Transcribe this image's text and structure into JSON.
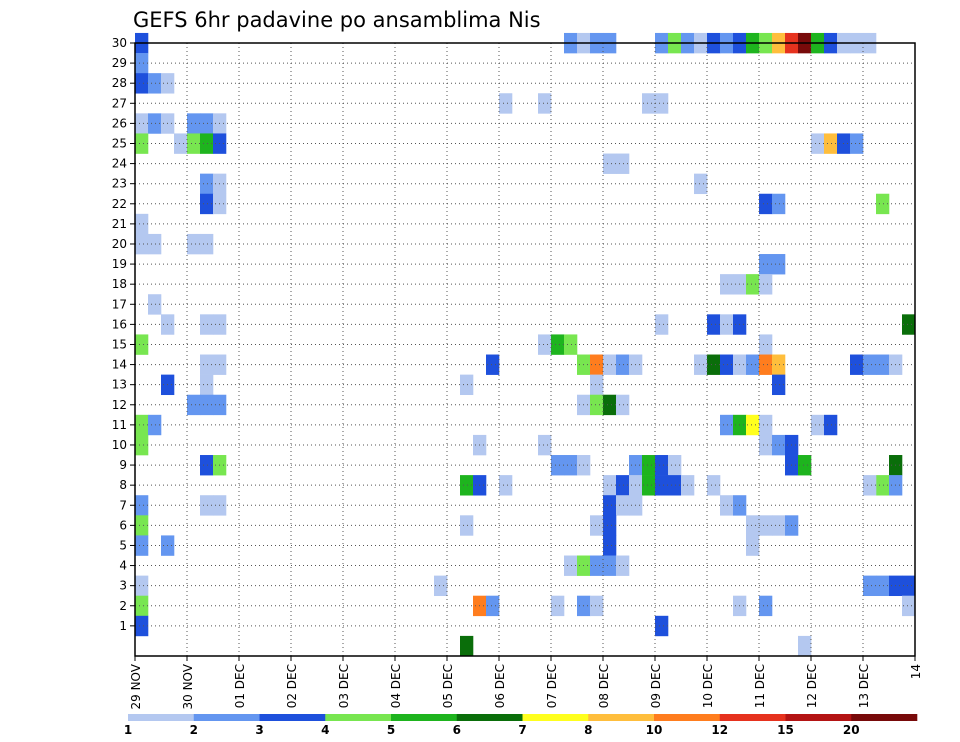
{
  "chart_data": {
    "type": "heatmap",
    "title": "GEFS 6hr padavine po ansamblima Nis",
    "xlabel": "",
    "ylabel": "",
    "x_ticks": [
      "29 NOV",
      "30 NOV",
      "01 DEC",
      "02 DEC",
      "03 DEC",
      "04 DEC",
      "05 DEC",
      "06 DEC",
      "07 DEC",
      "08 DEC",
      "09 DEC",
      "10 DEC",
      "11 DEC",
      "12 DEC",
      "13 DEC",
      "14"
    ],
    "x_steps_per_day": 4,
    "x_range_steps": [
      0,
      60
    ],
    "y_ticks": [
      "1",
      "2",
      "3",
      "4",
      "5",
      "6",
      "7",
      "8",
      "9",
      "10",
      "11",
      "12",
      "13",
      "14",
      "15",
      "16",
      "17",
      "18",
      "19",
      "20",
      "21",
      "22",
      "23",
      "24",
      "25",
      "26",
      "27",
      "28",
      "29",
      "30"
    ],
    "y_range": [
      0,
      30
    ],
    "grid": true,
    "legend": {
      "position": "bottom",
      "levels": [
        "1",
        "2",
        "3",
        "4",
        "5",
        "6",
        "7",
        "8",
        "10",
        "12",
        "15",
        "20"
      ],
      "colors": [
        "#b4c8f0",
        "#6496f0",
        "#1e50dc",
        "#78e650",
        "#1eb41e",
        "#0a6e0a",
        "#ffff1e",
        "#ffbe3c",
        "#ff7d1e",
        "#e6321e",
        "#b41414",
        "#780a0a"
      ]
    },
    "cells": [
      [
        30,
        0,
        3
      ],
      [
        30,
        33,
        2
      ],
      [
        30,
        34,
        1
      ],
      [
        30,
        35,
        2
      ],
      [
        30,
        36,
        2
      ],
      [
        30,
        40,
        2
      ],
      [
        30,
        41,
        4
      ],
      [
        30,
        42,
        2
      ],
      [
        30,
        43,
        1
      ],
      [
        30,
        44,
        3
      ],
      [
        30,
        45,
        2
      ],
      [
        30,
        46,
        3
      ],
      [
        30,
        47,
        5
      ],
      [
        30,
        48,
        4
      ],
      [
        30,
        49,
        8
      ],
      [
        30,
        50,
        10
      ],
      [
        30,
        51,
        12
      ],
      [
        30,
        52,
        5
      ],
      [
        30,
        53,
        3
      ],
      [
        30,
        54,
        1
      ],
      [
        30,
        55,
        1
      ],
      [
        30,
        56,
        1
      ],
      [
        29,
        0,
        2
      ],
      [
        28,
        0,
        3
      ],
      [
        28,
        1,
        2
      ],
      [
        28,
        2,
        1
      ],
      [
        27,
        28,
        1
      ],
      [
        27,
        31,
        1
      ],
      [
        27,
        39,
        1
      ],
      [
        27,
        40,
        1
      ],
      [
        26,
        0,
        1
      ],
      [
        26,
        1,
        2
      ],
      [
        26,
        2,
        1
      ],
      [
        26,
        4,
        2
      ],
      [
        26,
        5,
        2
      ],
      [
        26,
        6,
        1
      ],
      [
        25,
        0,
        4
      ],
      [
        25,
        3,
        1
      ],
      [
        25,
        4,
        4
      ],
      [
        25,
        5,
        5
      ],
      [
        25,
        6,
        3
      ],
      [
        25,
        52,
        1
      ],
      [
        25,
        53,
        8
      ],
      [
        25,
        54,
        3
      ],
      [
        25,
        55,
        2
      ],
      [
        24,
        36,
        1
      ],
      [
        24,
        37,
        1
      ],
      [
        23,
        5,
        2
      ],
      [
        23,
        6,
        1
      ],
      [
        23,
        43,
        1
      ],
      [
        22,
        5,
        3
      ],
      [
        22,
        6,
        1
      ],
      [
        22,
        48,
        3
      ],
      [
        22,
        49,
        2
      ],
      [
        22,
        57,
        4
      ],
      [
        21,
        0,
        1
      ],
      [
        20,
        0,
        1
      ],
      [
        20,
        1,
        1
      ],
      [
        20,
        4,
        1
      ],
      [
        20,
        5,
        1
      ],
      [
        19,
        48,
        2
      ],
      [
        19,
        49,
        2
      ],
      [
        18,
        45,
        1
      ],
      [
        18,
        46,
        1
      ],
      [
        18,
        47,
        4
      ],
      [
        18,
        48,
        1
      ],
      [
        17,
        1,
        1
      ],
      [
        16,
        2,
        1
      ],
      [
        16,
        5,
        1
      ],
      [
        16,
        6,
        1
      ],
      [
        16,
        40,
        1
      ],
      [
        16,
        44,
        3
      ],
      [
        16,
        45,
        1
      ],
      [
        16,
        46,
        3
      ],
      [
        16,
        59,
        6
      ],
      [
        15,
        0,
        4
      ],
      [
        15,
        31,
        1
      ],
      [
        15,
        32,
        5
      ],
      [
        15,
        33,
        4
      ],
      [
        15,
        48,
        1
      ],
      [
        14,
        5,
        1
      ],
      [
        14,
        6,
        1
      ],
      [
        14,
        27,
        3
      ],
      [
        14,
        34,
        4
      ],
      [
        14,
        35,
        9
      ],
      [
        14,
        36,
        1
      ],
      [
        14,
        37,
        2
      ],
      [
        14,
        38,
        1
      ],
      [
        14,
        43,
        1
      ],
      [
        14,
        44,
        6
      ],
      [
        14,
        45,
        3
      ],
      [
        14,
        46,
        1
      ],
      [
        14,
        47,
        2
      ],
      [
        14,
        48,
        9
      ],
      [
        14,
        49,
        8
      ],
      [
        14,
        55,
        3
      ],
      [
        14,
        56,
        2
      ],
      [
        14,
        57,
        2
      ],
      [
        14,
        58,
        1
      ],
      [
        13,
        2,
        3
      ],
      [
        13,
        5,
        1
      ],
      [
        13,
        25,
        1
      ],
      [
        13,
        35,
        1
      ],
      [
        13,
        49,
        3
      ],
      [
        12,
        4,
        2
      ],
      [
        12,
        5,
        2
      ],
      [
        12,
        6,
        2
      ],
      [
        12,
        34,
        1
      ],
      [
        12,
        35,
        4
      ],
      [
        12,
        36,
        6
      ],
      [
        12,
        37,
        1
      ],
      [
        11,
        0,
        4
      ],
      [
        11,
        1,
        2
      ],
      [
        11,
        45,
        2
      ],
      [
        11,
        46,
        5
      ],
      [
        11,
        47,
        7
      ],
      [
        11,
        48,
        1
      ],
      [
        11,
        52,
        1
      ],
      [
        11,
        53,
        3
      ],
      [
        10,
        0,
        4
      ],
      [
        10,
        26,
        1
      ],
      [
        10,
        31,
        1
      ],
      [
        10,
        48,
        1
      ],
      [
        10,
        49,
        2
      ],
      [
        10,
        50,
        3
      ],
      [
        9,
        5,
        3
      ],
      [
        9,
        6,
        4
      ],
      [
        9,
        32,
        2
      ],
      [
        9,
        33,
        2
      ],
      [
        9,
        34,
        1
      ],
      [
        9,
        38,
        2
      ],
      [
        9,
        39,
        5
      ],
      [
        9,
        40,
        3
      ],
      [
        9,
        41,
        1
      ],
      [
        9,
        50,
        3
      ],
      [
        9,
        51,
        5
      ],
      [
        9,
        58,
        6
      ],
      [
        8,
        25,
        5
      ],
      [
        8,
        26,
        3
      ],
      [
        8,
        28,
        1
      ],
      [
        8,
        36,
        1
      ],
      [
        8,
        37,
        3
      ],
      [
        8,
        38,
        1
      ],
      [
        8,
        39,
        5
      ],
      [
        8,
        40,
        3
      ],
      [
        8,
        41,
        3
      ],
      [
        8,
        42,
        1
      ],
      [
        8,
        44,
        1
      ],
      [
        8,
        57,
        4
      ],
      [
        8,
        58,
        2
      ],
      [
        8,
        56,
        1
      ],
      [
        7,
        0,
        2
      ],
      [
        7,
        5,
        1
      ],
      [
        7,
        6,
        1
      ],
      [
        7,
        36,
        3
      ],
      [
        7,
        37,
        1
      ],
      [
        7,
        38,
        1
      ],
      [
        7,
        45,
        1
      ],
      [
        7,
        46,
        2
      ],
      [
        6,
        0,
        4
      ],
      [
        6,
        25,
        1
      ],
      [
        6,
        35,
        1
      ],
      [
        6,
        36,
        3
      ],
      [
        6,
        47,
        1
      ],
      [
        6,
        48,
        1
      ],
      [
        6,
        49,
        1
      ],
      [
        6,
        50,
        2
      ],
      [
        5,
        0,
        2
      ],
      [
        5,
        2,
        2
      ],
      [
        5,
        36,
        3
      ],
      [
        5,
        47,
        1
      ],
      [
        4,
        33,
        1
      ],
      [
        4,
        34,
        4
      ],
      [
        4,
        35,
        2
      ],
      [
        4,
        36,
        2
      ],
      [
        4,
        37,
        1
      ],
      [
        3,
        0,
        1
      ],
      [
        3,
        23,
        1
      ],
      [
        3,
        56,
        2
      ],
      [
        3,
        57,
        2
      ],
      [
        3,
        58,
        3
      ],
      [
        3,
        59,
        3
      ],
      [
        2,
        0,
        4
      ],
      [
        2,
        26,
        9
      ],
      [
        2,
        27,
        2
      ],
      [
        2,
        32,
        1
      ],
      [
        2,
        34,
        2
      ],
      [
        2,
        35,
        1
      ],
      [
        2,
        46,
        1
      ],
      [
        2,
        48,
        2
      ],
      [
        2,
        59,
        1
      ],
      [
        1,
        0,
        3
      ],
      [
        1,
        40,
        3
      ],
      [
        0,
        25,
        6
      ],
      [
        0,
        51,
        1
      ]
    ]
  }
}
